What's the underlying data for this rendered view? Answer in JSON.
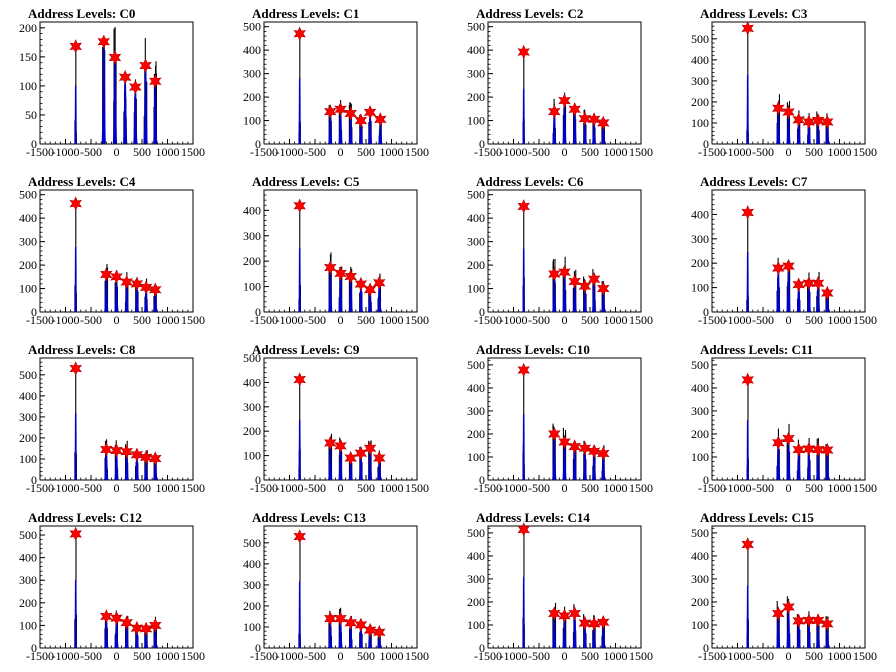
{
  "charts": [
    {
      "title": "Address Levels: C0",
      "ylim": [
        0,
        210
      ],
      "yticks": [
        0,
        50,
        100,
        150,
        200
      ],
      "xlim": [
        -1500,
        1500
      ],
      "xticks": [
        "-1500",
        "-1000",
        "-500",
        "0",
        "500",
        "1000",
        "1500"
      ],
      "peaks": [
        {
          "x": -800,
          "y": 168
        },
        {
          "x": -250,
          "y": 176
        },
        {
          "x": -30,
          "y": 149
        },
        {
          "x": 170,
          "y": 115
        },
        {
          "x": 370,
          "y": 98
        },
        {
          "x": 570,
          "y": 135
        },
        {
          "x": 760,
          "y": 108
        }
      ]
    },
    {
      "title": "Address Levels: C1",
      "ylim": [
        0,
        520
      ],
      "yticks": [
        0,
        100,
        200,
        300,
        400,
        500
      ],
      "xlim": [
        -1500,
        1500
      ],
      "xticks": [
        "-1500",
        "-1000",
        "-500",
        "0",
        "500",
        "1000",
        "1500"
      ],
      "peaks": [
        {
          "x": -800,
          "y": 470
        },
        {
          "x": -200,
          "y": 138
        },
        {
          "x": 0,
          "y": 148
        },
        {
          "x": 200,
          "y": 130
        },
        {
          "x": 400,
          "y": 100
        },
        {
          "x": 580,
          "y": 135
        },
        {
          "x": 780,
          "y": 105
        }
      ]
    },
    {
      "title": "Address Levels: C2",
      "ylim": [
        0,
        520
      ],
      "yticks": [
        0,
        100,
        200,
        300,
        400,
        500
      ],
      "xlim": [
        -1500,
        1500
      ],
      "xticks": [
        "-1500",
        "-1000",
        "-500",
        "0",
        "500",
        "1000",
        "1500"
      ],
      "peaks": [
        {
          "x": -800,
          "y": 392
        },
        {
          "x": -200,
          "y": 138
        },
        {
          "x": 0,
          "y": 185
        },
        {
          "x": 200,
          "y": 148
        },
        {
          "x": 400,
          "y": 108
        },
        {
          "x": 580,
          "y": 105
        },
        {
          "x": 760,
          "y": 90
        }
      ]
    },
    {
      "title": "Address Levels: C3",
      "ylim": [
        0,
        580
      ],
      "yticks": [
        0,
        100,
        200,
        300,
        400,
        500
      ],
      "xlim": [
        -1500,
        1500
      ],
      "xticks": [
        "-1500",
        "-1000",
        "-500",
        "0",
        "500",
        "1000",
        "1500"
      ],
      "peaks": [
        {
          "x": -800,
          "y": 550
        },
        {
          "x": -200,
          "y": 170
        },
        {
          "x": 0,
          "y": 152
        },
        {
          "x": 200,
          "y": 115
        },
        {
          "x": 400,
          "y": 105
        },
        {
          "x": 580,
          "y": 112
        },
        {
          "x": 760,
          "y": 105
        }
      ]
    },
    {
      "title": "Address Levels: C4",
      "ylim": [
        0,
        520
      ],
      "yticks": [
        0,
        100,
        200,
        300,
        400,
        500
      ],
      "xlim": [
        -1500,
        1500
      ],
      "xticks": [
        "-1500",
        "-1000",
        "-500",
        "0",
        "500",
        "1000",
        "1500"
      ],
      "peaks": [
        {
          "x": -800,
          "y": 462
        },
        {
          "x": -200,
          "y": 160
        },
        {
          "x": 0,
          "y": 150
        },
        {
          "x": 200,
          "y": 128
        },
        {
          "x": 400,
          "y": 120
        },
        {
          "x": 580,
          "y": 105
        },
        {
          "x": 760,
          "y": 95
        }
      ]
    },
    {
      "title": "Address Levels: C5",
      "ylim": [
        0,
        480
      ],
      "yticks": [
        0,
        100,
        200,
        300,
        400
      ],
      "xlim": [
        -1500,
        1500
      ],
      "xticks": [
        "-1500",
        "-1000",
        "-500",
        "0",
        "500",
        "1000",
        "1500"
      ],
      "peaks": [
        {
          "x": -800,
          "y": 418
        },
        {
          "x": -200,
          "y": 175
        },
        {
          "x": 0,
          "y": 152
        },
        {
          "x": 200,
          "y": 140
        },
        {
          "x": 400,
          "y": 110
        },
        {
          "x": 580,
          "y": 88
        },
        {
          "x": 760,
          "y": 115
        }
      ]
    },
    {
      "title": "Address Levels: C6",
      "ylim": [
        0,
        520
      ],
      "yticks": [
        0,
        100,
        200,
        300,
        400,
        500
      ],
      "xlim": [
        -1500,
        1500
      ],
      "xticks": [
        "-1500",
        "-1000",
        "-500",
        "0",
        "500",
        "1000",
        "1500"
      ],
      "peaks": [
        {
          "x": -800,
          "y": 450
        },
        {
          "x": -200,
          "y": 162
        },
        {
          "x": 0,
          "y": 170
        },
        {
          "x": 200,
          "y": 130
        },
        {
          "x": 400,
          "y": 110
        },
        {
          "x": 580,
          "y": 140
        },
        {
          "x": 760,
          "y": 100
        }
      ]
    },
    {
      "title": "Address Levels: C7",
      "ylim": [
        0,
        500
      ],
      "yticks": [
        0,
        100,
        200,
        300,
        400
      ],
      "xlim": [
        -1500,
        1500
      ],
      "xticks": [
        "-1500",
        "-1000",
        "-500",
        "0",
        "500",
        "1000",
        "1500"
      ],
      "peaks": [
        {
          "x": -800,
          "y": 408
        },
        {
          "x": -200,
          "y": 180
        },
        {
          "x": 0,
          "y": 188
        },
        {
          "x": 200,
          "y": 112
        },
        {
          "x": 400,
          "y": 118
        },
        {
          "x": 580,
          "y": 118
        },
        {
          "x": 760,
          "y": 78
        }
      ]
    },
    {
      "title": "Address Levels: C8",
      "ylim": [
        0,
        580
      ],
      "yticks": [
        0,
        100,
        200,
        300,
        400,
        500
      ],
      "xlim": [
        -1500,
        1500
      ],
      "xticks": [
        "-1500",
        "-1000",
        "-500",
        "0",
        "500",
        "1000",
        "1500"
      ],
      "peaks": [
        {
          "x": -800,
          "y": 530
        },
        {
          "x": -200,
          "y": 145
        },
        {
          "x": 0,
          "y": 140
        },
        {
          "x": 200,
          "y": 135
        },
        {
          "x": 400,
          "y": 120
        },
        {
          "x": 580,
          "y": 108
        },
        {
          "x": 760,
          "y": 102
        }
      ]
    },
    {
      "title": "Address Levels: C9",
      "ylim": [
        0,
        500
      ],
      "yticks": [
        0,
        100,
        200,
        300,
        400,
        500
      ],
      "xlim": [
        -1500,
        1500
      ],
      "xticks": [
        "-1500",
        "-1000",
        "-500",
        "0",
        "500",
        "1000",
        "1500"
      ],
      "peaks": [
        {
          "x": -800,
          "y": 412
        },
        {
          "x": -200,
          "y": 152
        },
        {
          "x": 0,
          "y": 140
        },
        {
          "x": 200,
          "y": 90
        },
        {
          "x": 400,
          "y": 110
        },
        {
          "x": 580,
          "y": 130
        },
        {
          "x": 760,
          "y": 90
        }
      ]
    },
    {
      "title": "Address Levels: C10",
      "ylim": [
        0,
        530
      ],
      "yticks": [
        0,
        100,
        200,
        300,
        400,
        500
      ],
      "xlim": [
        -1500,
        1500
      ],
      "xticks": [
        "-1500",
        "-1000",
        "-500",
        "0",
        "500",
        "1000",
        "1500"
      ],
      "peaks": [
        {
          "x": -800,
          "y": 478
        },
        {
          "x": -200,
          "y": 200
        },
        {
          "x": 0,
          "y": 165
        },
        {
          "x": 200,
          "y": 145
        },
        {
          "x": 400,
          "y": 138
        },
        {
          "x": 580,
          "y": 125
        },
        {
          "x": 760,
          "y": 115
        }
      ]
    },
    {
      "title": "Address Levels: C11",
      "ylim": [
        0,
        530
      ],
      "yticks": [
        0,
        100,
        200,
        300,
        400,
        500
      ],
      "xlim": [
        -1500,
        1500
      ],
      "xticks": [
        "-1500",
        "-1000",
        "-500",
        "0",
        "500",
        "1000",
        "1500"
      ],
      "peaks": [
        {
          "x": -800,
          "y": 435
        },
        {
          "x": -200,
          "y": 162
        },
        {
          "x": 0,
          "y": 180
        },
        {
          "x": 200,
          "y": 132
        },
        {
          "x": 400,
          "y": 135
        },
        {
          "x": 580,
          "y": 132
        },
        {
          "x": 760,
          "y": 130
        }
      ]
    },
    {
      "title": "Address Levels: C12",
      "ylim": [
        0,
        540
      ],
      "yticks": [
        0,
        100,
        200,
        300,
        400,
        500
      ],
      "xlim": [
        -1500,
        1500
      ],
      "xticks": [
        "-1500",
        "-1000",
        "-500",
        "0",
        "500",
        "1000",
        "1500"
      ],
      "peaks": [
        {
          "x": -800,
          "y": 505
        },
        {
          "x": -200,
          "y": 140
        },
        {
          "x": 0,
          "y": 132
        },
        {
          "x": 200,
          "y": 112
        },
        {
          "x": 400,
          "y": 88
        },
        {
          "x": 580,
          "y": 85
        },
        {
          "x": 760,
          "y": 100
        }
      ]
    },
    {
      "title": "Address Levels: C13",
      "ylim": [
        0,
        580
      ],
      "yticks": [
        0,
        100,
        200,
        300,
        400,
        500
      ],
      "xlim": [
        -1500,
        1500
      ],
      "xticks": [
        "-1500",
        "-1000",
        "-500",
        "0",
        "500",
        "1000",
        "1500"
      ],
      "peaks": [
        {
          "x": -800,
          "y": 530
        },
        {
          "x": -200,
          "y": 140
        },
        {
          "x": 0,
          "y": 140
        },
        {
          "x": 200,
          "y": 120
        },
        {
          "x": 400,
          "y": 110
        },
        {
          "x": 580,
          "y": 85
        },
        {
          "x": 760,
          "y": 75
        }
      ]
    },
    {
      "title": "Address Levels: C14",
      "ylim": [
        0,
        530
      ],
      "yticks": [
        0,
        100,
        200,
        300,
        400,
        500
      ],
      "xlim": [
        -1500,
        1500
      ],
      "xticks": [
        "-1500",
        "-1000",
        "-500",
        "0",
        "500",
        "1000",
        "1500"
      ],
      "peaks": [
        {
          "x": -800,
          "y": 515
        },
        {
          "x": -200,
          "y": 150
        },
        {
          "x": 0,
          "y": 140
        },
        {
          "x": 200,
          "y": 150
        },
        {
          "x": 400,
          "y": 108
        },
        {
          "x": 580,
          "y": 105
        },
        {
          "x": 760,
          "y": 112
        }
      ]
    },
    {
      "title": "Address Levels: C15",
      "ylim": [
        0,
        530
      ],
      "yticks": [
        0,
        100,
        200,
        300,
        400,
        500
      ],
      "xlim": [
        -1500,
        1500
      ],
      "xticks": [
        "-1500",
        "-1000",
        "-500",
        "0",
        "500",
        "1000",
        "1500"
      ],
      "peaks": [
        {
          "x": -800,
          "y": 450
        },
        {
          "x": -200,
          "y": 150
        },
        {
          "x": 0,
          "y": 178
        },
        {
          "x": 200,
          "y": 118
        },
        {
          "x": 400,
          "y": 120
        },
        {
          "x": 580,
          "y": 120
        },
        {
          "x": 760,
          "y": 105
        }
      ]
    }
  ],
  "chart_data": [
    {
      "type": "bar",
      "title": "Address Levels: C0",
      "series": [
        {
          "name": "histogram",
          "color": "#000000"
        },
        {
          "name": "fit",
          "color": "#0000cc"
        },
        {
          "name": "peaks",
          "color": "#ff0000"
        }
      ]
    }
  ],
  "colors": {
    "hist": "#000000",
    "fit": "#0000cc",
    "marker": "#ff0000",
    "axis": "#000000",
    "background": "#ffffff"
  }
}
